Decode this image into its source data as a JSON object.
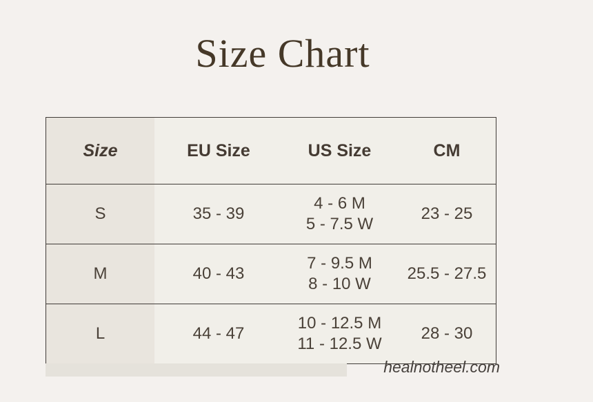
{
  "title": "Size Chart",
  "watermark": "healnotheel.com",
  "colors": {
    "page_background": "#f4f1ee",
    "table_background": "#f1efe9",
    "size_column_background": "#e9e5de",
    "border": "#403b37",
    "title_text": "#453828",
    "body_text": "#4a4138"
  },
  "table": {
    "headers": [
      "Size",
      "EU Size",
      "US Size",
      "CM"
    ],
    "rows": [
      {
        "size": "S",
        "eu": "35 - 39",
        "us_m": "4 - 6 M",
        "us_w": "5 - 7.5 W",
        "cm": "23 - 25"
      },
      {
        "size": "M",
        "eu": "40 - 43",
        "us_m": "7 - 9.5 M",
        "us_w": "8 - 10 W",
        "cm": "25.5 - 27.5"
      },
      {
        "size": "L",
        "eu": "44 - 47",
        "us_m": "10 - 12.5 M",
        "us_w": "11 - 12.5 W",
        "cm": "28 - 30"
      }
    ]
  },
  "chart_data": {
    "type": "table",
    "title": "Size Chart",
    "columns": [
      "Size",
      "EU Size",
      "US Size",
      "CM"
    ],
    "rows": [
      [
        "S",
        "35 - 39",
        "4 - 6 M / 5 - 7.5 W",
        "23 - 25"
      ],
      [
        "M",
        "40 - 43",
        "7 - 9.5 M / 8 - 10 W",
        "25.5 - 27.5"
      ],
      [
        "L",
        "44 - 47",
        "10 - 12.5 M / 11 - 12.5 W",
        "28 - 30"
      ]
    ],
    "footer": "healnotheel.com"
  }
}
